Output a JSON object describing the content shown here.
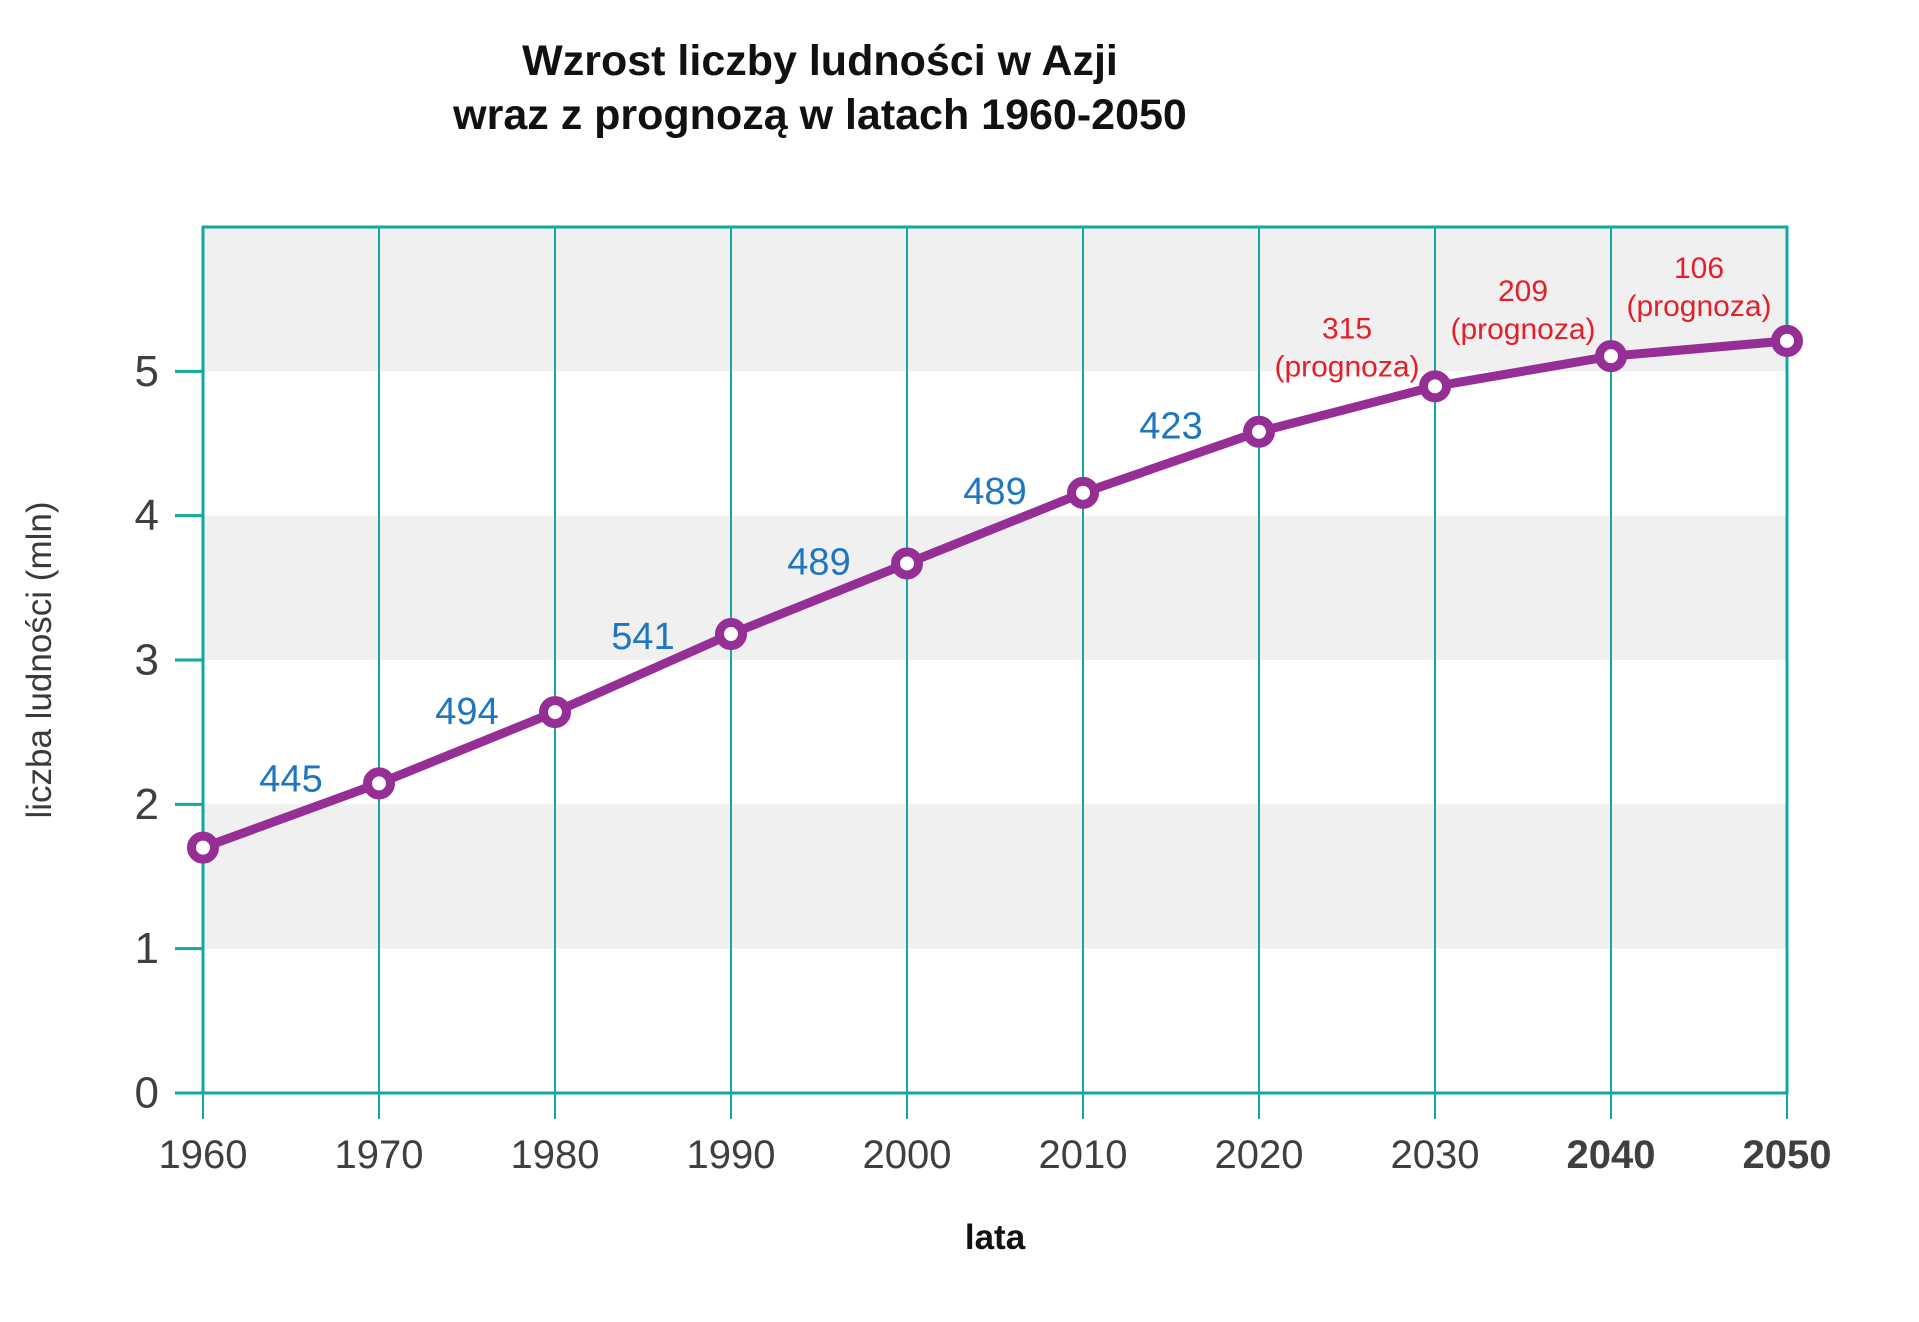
{
  "chart_data": {
    "type": "line",
    "title_lines": [
      "Wzrost liczby ludności w Azji",
      "wraz z prognozą w latach 1960-2050"
    ],
    "xlabel": "lata",
    "ylabel": "liczba ludności (mln)",
    "x": [
      1960,
      1970,
      1980,
      1990,
      2000,
      2010,
      2020,
      2030,
      2040,
      2050
    ],
    "values": [
      1.7,
      2.145,
      2.639,
      3.18,
      3.669,
      4.158,
      4.581,
      4.896,
      5.105,
      5.211
    ],
    "yticks": [
      0,
      1,
      2,
      3,
      4,
      5
    ],
    "ylim": [
      0,
      6
    ],
    "bold_xticks": [
      2040,
      2050
    ],
    "labels": [
      {
        "text": "445",
        "years": [
          1960,
          1970
        ],
        "kind": "value"
      },
      {
        "text": "494",
        "years": [
          1970,
          1980
        ],
        "kind": "value"
      },
      {
        "text": "541",
        "years": [
          1980,
          1990
        ],
        "kind": "value"
      },
      {
        "text": "489",
        "years": [
          1990,
          2000
        ],
        "kind": "value"
      },
      {
        "text": "489",
        "years": [
          2000,
          2010
        ],
        "kind": "value"
      },
      {
        "text": "423",
        "years": [
          2010,
          2020
        ],
        "kind": "value"
      },
      {
        "text": "315",
        "note": "(prognoza)",
        "years": [
          2020,
          2030
        ],
        "kind": "forecast"
      },
      {
        "text": "209",
        "note": "(prognoza)",
        "years": [
          2030,
          2040
        ],
        "kind": "forecast"
      },
      {
        "text": "106",
        "note": "(prognoza)",
        "years": [
          2040,
          2050
        ],
        "kind": "forecast"
      }
    ],
    "layout": {
      "gray_bands": [
        [
          1,
          2
        ],
        [
          3,
          4
        ],
        [
          5,
          6
        ]
      ],
      "grid": "vertical-per-decade",
      "legend": "none"
    },
    "colors": {
      "line": "#952f96",
      "marker_fill": "#ffffff",
      "grid": "#12a7a0",
      "band": "#f0f0f0",
      "historical_label": "#1e76c0",
      "forecast_label": "#e51f2a",
      "tick_label": "#3f3f3f"
    }
  }
}
